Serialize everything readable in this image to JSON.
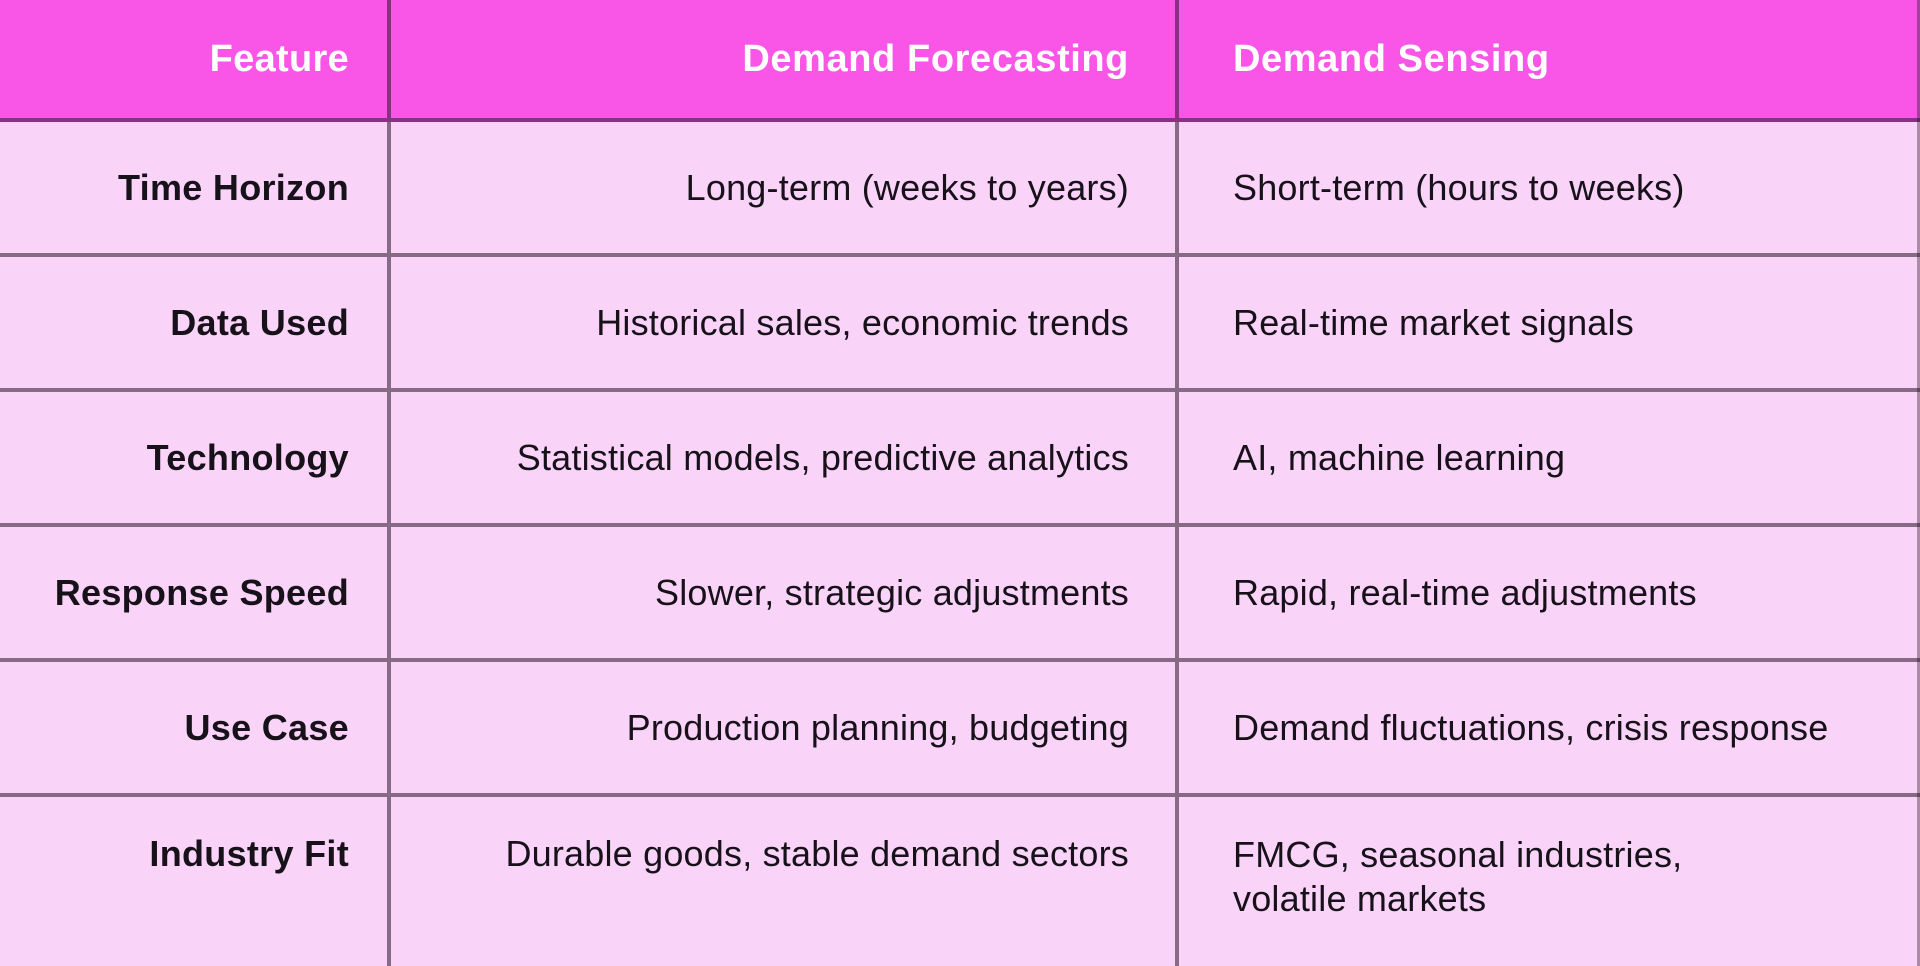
{
  "chart_data": {
    "type": "table",
    "title": "Demand Forecasting vs Demand Sensing comparison table",
    "columns": [
      "Feature",
      "Demand Forecasting",
      "Demand Sensing"
    ],
    "rows": [
      [
        "Time Horizon",
        "Long-term (weeks to years)",
        "Short-term (hours to weeks)"
      ],
      [
        "Data Used",
        "Historical sales, economic trends",
        "Real-time market signals"
      ],
      [
        "Technology",
        "Statistical models, predictive analytics",
        "AI, machine learning"
      ],
      [
        "Response Speed",
        "Slower, strategic adjustments",
        "Rapid, real-time adjustments"
      ],
      [
        "Use Case",
        "Production planning, budgeting",
        "Demand fluctuations, crisis response"
      ],
      [
        "Industry Fit",
        "Durable goods, stable demand sectors",
        "FMCG, seasonal industries,\nvolatile markets"
      ]
    ],
    "layout_hints": {
      "header_position": "top",
      "feature_column_alignment": "right",
      "forecasting_column_alignment": "right",
      "sensing_column_alignment": "left",
      "grid": "on"
    }
  },
  "colors": {
    "header_bg": "#F956E7",
    "body_bg": "#FAD3F9",
    "header_text": "#FFFFFF",
    "body_text": "#171219",
    "grid_line": "rgba(40,22,40,0.55)"
  }
}
